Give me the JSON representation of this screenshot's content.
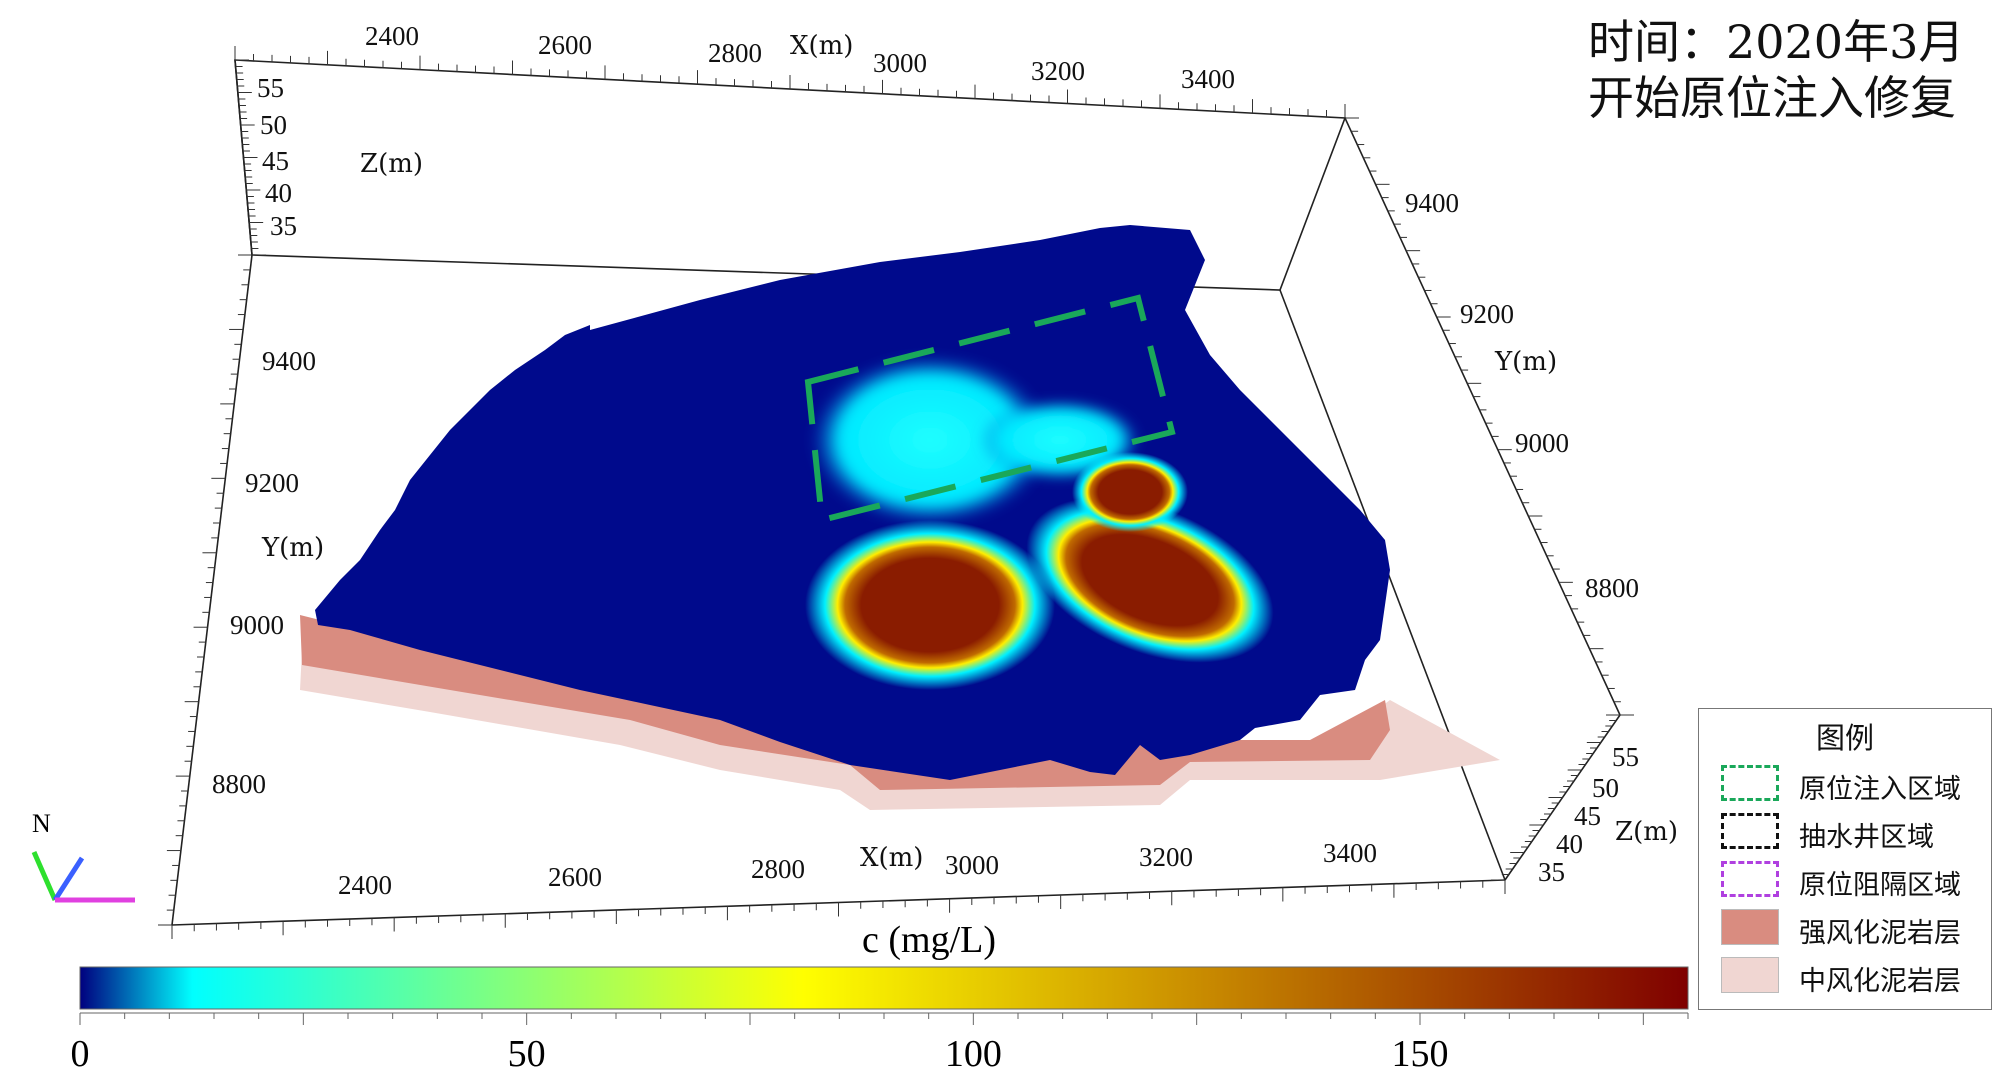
{
  "title": {
    "line1": "时间：2020年3月",
    "line2": "开始原位注入修复"
  },
  "axes": {
    "x_title": "X(m)",
    "y_title": "Y(m)",
    "z_title": "Z(m)",
    "top_x_ticks": [
      "2400",
      "2600",
      "2800",
      "3000",
      "3200",
      "3400"
    ],
    "bottom_x_ticks": [
      "2400",
      "2600",
      "2800",
      "3000",
      "3200",
      "3400"
    ],
    "left_y_ticks": [
      "9400",
      "9200",
      "9000",
      "8800"
    ],
    "right_y_ticks": [
      "9400",
      "9200",
      "9000",
      "8800"
    ],
    "left_z_ticks": [
      "55",
      "50",
      "45",
      "40",
      "35"
    ],
    "right_z_ticks": [
      "55",
      "50",
      "45",
      "40",
      "35"
    ]
  },
  "north_label": "N",
  "colorbar": {
    "label": "c (mg/L)",
    "ticks": [
      "0",
      "50",
      "100",
      "150"
    ],
    "min": 0,
    "max": 180,
    "stops": [
      "#00007f",
      "#00ffff",
      "#ffff00",
      "#c88a00",
      "#7f0000"
    ]
  },
  "legend": {
    "title": "图例",
    "items": [
      {
        "label": "原位注入区域",
        "kind": "dash",
        "color": "#1aa85a"
      },
      {
        "label": "抽水井区域",
        "kind": "dash",
        "color": "#111111"
      },
      {
        "label": "原位阻隔区域",
        "kind": "dash",
        "color": "#b040e0"
      },
      {
        "label": "强风化泥岩层",
        "kind": "fill",
        "color": "#d98c80"
      },
      {
        "label": "中风化泥岩层",
        "kind": "fill",
        "color": "#f0d6d2"
      }
    ]
  },
  "colors": {
    "plume_background": "#000a8c",
    "injection_zone": "#1aa85a"
  }
}
